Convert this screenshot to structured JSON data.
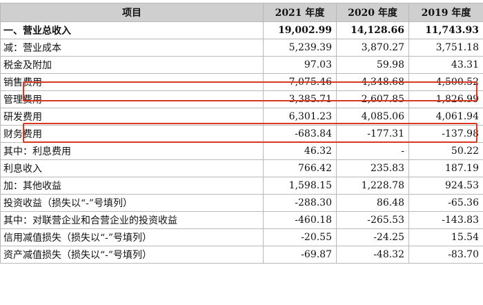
{
  "header": {
    "item": "项目",
    "y2021": "2021 年度",
    "y2020": "2020 年度",
    "y2019": "2019 年度"
  },
  "rows": [
    {
      "label": "一、营业总收入",
      "v2021": "19,002.99",
      "v2020": "14,128.66",
      "v2019": "11,743.93"
    },
    {
      "label": "减：营业成本",
      "v2021": "5,239.39",
      "v2020": "3,870.27",
      "v2019": "3,751.18"
    },
    {
      "label": "税金及附加",
      "v2021": "97.03",
      "v2020": "59.98",
      "v2019": "43.31"
    },
    {
      "label": "销售费用",
      "v2021": "7,075.46",
      "v2020": "4,348.68",
      "v2019": "4,500.52"
    },
    {
      "label": "管理费用",
      "v2021": "3,385.71",
      "v2020": "2,607.85",
      "v2019": "1,826.99"
    },
    {
      "label": "研发费用",
      "v2021": "6,301.23",
      "v2020": "4,085.06",
      "v2019": "4,061.94"
    },
    {
      "label": "财务费用",
      "v2021": "-683.84",
      "v2020": "-177.31",
      "v2019": "-137.98"
    },
    {
      "label": "其中：利息费用",
      "v2021": "46.32",
      "v2020": "-",
      "v2019": "50.22"
    },
    {
      "label": "利息收入",
      "v2021": "766.42",
      "v2020": "235.83",
      "v2019": "187.19"
    },
    {
      "label": "加：其他收益",
      "v2021": "1,598.15",
      "v2020": "1,228.78",
      "v2019": "924.53"
    },
    {
      "label": "投资收益（损失以“-”号填列）",
      "v2021": "-288.30",
      "v2020": "86.48",
      "v2019": "-65.36"
    },
    {
      "label": "其中：对联营企业和合营企业的投资收益",
      "v2021": "-460.18",
      "v2020": "-265.53",
      "v2019": "-143.83"
    },
    {
      "label": "信用减值损失（损失以“-”号填列）",
      "v2021": "-20.55",
      "v2020": "-24.25",
      "v2019": "15.54"
    },
    {
      "label": "资产减值损失（损失以“-”号填列）",
      "v2021": "-69.87",
      "v2020": "-48.32",
      "v2019": "-83.70"
    }
  ],
  "highlight_color": "#d9381e"
}
